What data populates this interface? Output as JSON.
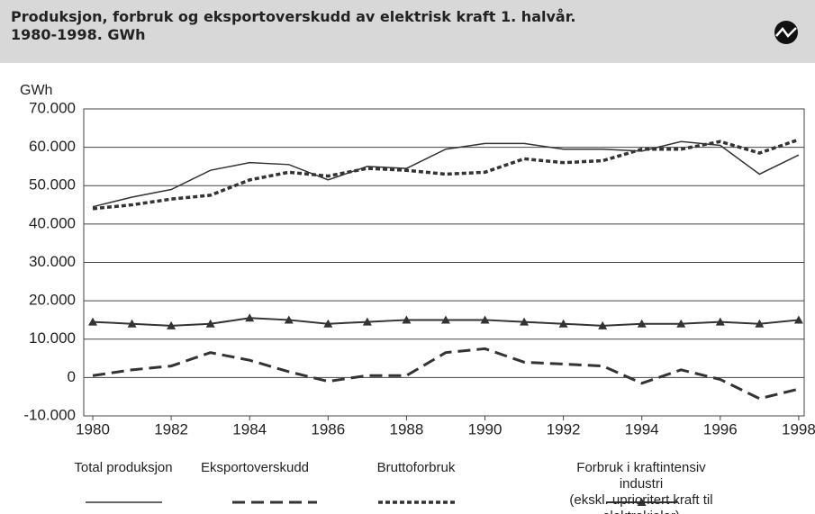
{
  "chart_data": {
    "type": "line",
    "title": "Produksjon, forbruk og eksportoverskudd av elektrisk kraft 1. halvår.\n1980-1998. GWh",
    "y_label": "GWh",
    "x": [
      1980,
      1981,
      1982,
      1983,
      1984,
      1985,
      1986,
      1987,
      1988,
      1989,
      1990,
      1991,
      1992,
      1993,
      1994,
      1995,
      1996,
      1997,
      1998
    ],
    "xlim": [
      1979.77,
      1998.14
    ],
    "xticks": [
      1980,
      1982,
      1984,
      1986,
      1988,
      1990,
      1992,
      1994,
      1996,
      1998
    ],
    "ylim": [
      -10000,
      70000
    ],
    "yticks": [
      {
        "value": -10000,
        "label": "-10.000"
      },
      0,
      {
        "value": 10000,
        "label": "10.000"
      },
      {
        "value": 20000,
        "label": "20.000"
      },
      {
        "value": 30000,
        "label": "30.000"
      },
      {
        "value": 40000,
        "label": "40.000"
      },
      {
        "value": 50000,
        "label": "50.000"
      },
      {
        "value": 60000,
        "label": "60.000"
      },
      {
        "value": 70000,
        "label": "70.000"
      }
    ],
    "grid": true,
    "series": [
      {
        "name": "Total produksjon",
        "color": "#333333",
        "line_style": "solid",
        "values": [
          44500,
          47000,
          49000,
          54000,
          56000,
          55500,
          51500,
          55000,
          54500,
          59500,
          61000,
          61000,
          59500,
          59500,
          59000,
          61500,
          60500,
          53000,
          58000
        ]
      },
      {
        "name": "Eksportoverskudd",
        "color": "#333333",
        "line_style": "dashed",
        "values": [
          500,
          2000,
          3000,
          6500,
          4500,
          1500,
          -1000,
          500,
          500,
          6500,
          7500,
          4000,
          3500,
          3000,
          -1500,
          2000,
          -500,
          -5500,
          -3000
        ]
      },
      {
        "name": "Bruttoforbruk",
        "color": "#333333",
        "line_style": "dotted",
        "values": [
          44000,
          45000,
          46500,
          47500,
          51500,
          53500,
          52500,
          54500,
          54000,
          53000,
          53500,
          57000,
          56000,
          56500,
          59500,
          59500,
          61500,
          58500,
          62000
        ]
      },
      {
        "name": "Forbruk i kraftintensiv industri\n(ekskl. uprioritert kraft til elektrokjeler)",
        "color": "#333333",
        "line_style": "markers",
        "values": [
          14500,
          14000,
          13500,
          14000,
          15500,
          15000,
          14000,
          14500,
          15000,
          15000,
          15000,
          14500,
          14000,
          13500,
          14000,
          14000,
          14500,
          14000,
          15000
        ]
      }
    ]
  }
}
